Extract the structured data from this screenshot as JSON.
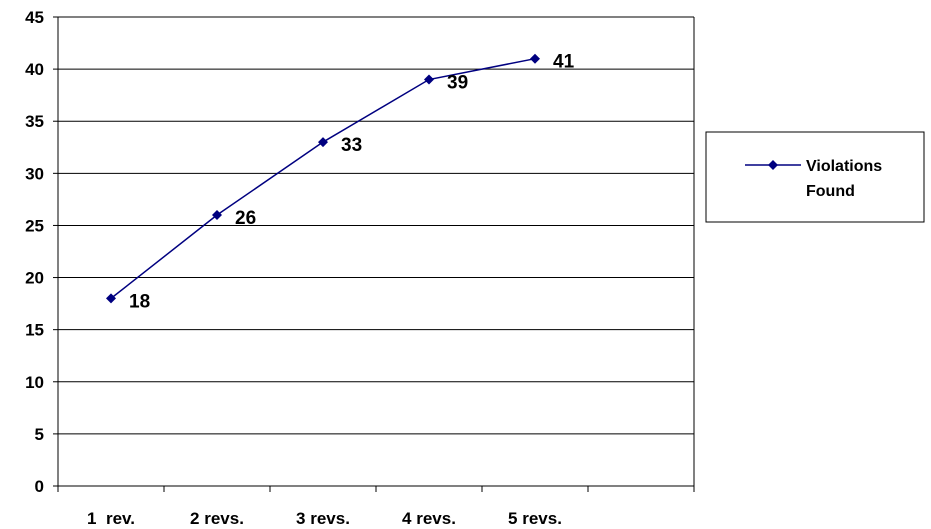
{
  "chart_data": {
    "type": "line",
    "title": "",
    "xlabel": "",
    "ylabel": "",
    "categories": [
      "1  rev.",
      "2 revs.",
      "3 revs.",
      "4 revs.",
      "5 revs."
    ],
    "series": [
      {
        "name": "Violations Found",
        "values": [
          18,
          26,
          33,
          39,
          41
        ],
        "color": "#000080"
      }
    ],
    "ylim": [
      0,
      45
    ],
    "yticks": [
      "0",
      "5",
      "10",
      "15",
      "20",
      "25",
      "30",
      "35",
      "40",
      "45"
    ],
    "grid": true,
    "legend": {
      "position": "right",
      "lines": [
        "Violations",
        "Found"
      ]
    }
  }
}
